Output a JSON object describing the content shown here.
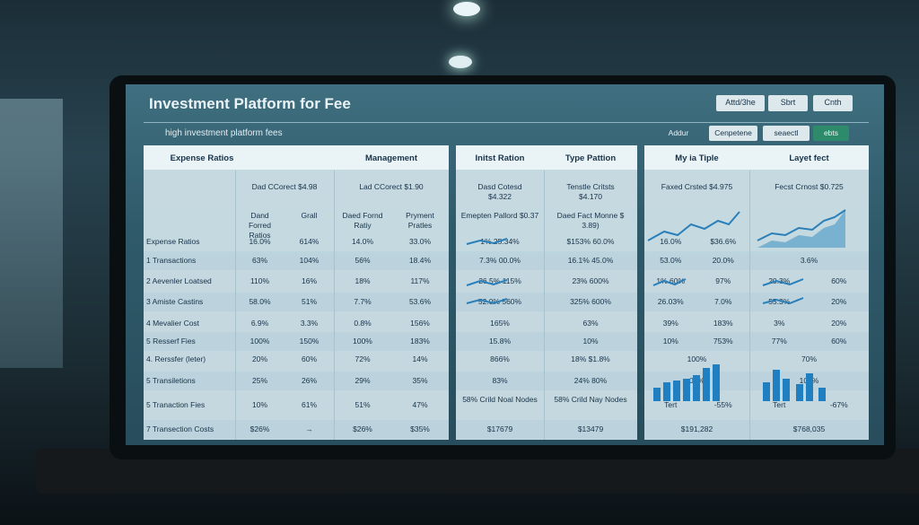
{
  "header": {
    "title": "Investment Platform for Fee",
    "buttons": [
      "Attd/3he",
      "Sbrt",
      "Cnth"
    ]
  },
  "toolbar": {
    "subtitle": "high investment platform fees",
    "controls": [
      "Addur",
      "Cenpetene",
      "seaectl",
      "ebts"
    ]
  },
  "panels": [
    {
      "headers": [
        "Expense Ratios",
        "Management"
      ],
      "summaries": [
        "Dad CCorect $4.98",
        "Lad CCorect $1.90"
      ],
      "columns": [
        [
          "Dand Forred Ratios",
          "Grall"
        ],
        [
          "Daed Fornd Ratiy",
          "Pryment Pratles"
        ]
      ],
      "labels": [
        "Expense Ratios",
        "1 Transactions",
        "2 Aevenler Loatsed",
        "3 Amiste Castins",
        "4 Mevalier Cost",
        "5 Resserf Fies",
        "4. Rerssfer (leter)",
        "5 Transiletions",
        "5 Tranaction Fies",
        "7 Transection Costs"
      ],
      "rows": [
        [
          [
            "16.0%",
            "614%"
          ],
          [
            "14.0%",
            "33.0%"
          ]
        ],
        [
          [
            "63%",
            "104%"
          ],
          [
            "56%",
            "18.4%"
          ]
        ],
        [
          [
            "110%",
            "16%"
          ],
          [
            "18%",
            "117%"
          ]
        ],
        [
          [
            "58.0%",
            "51%"
          ],
          [
            "7.7%",
            "53.6%"
          ]
        ],
        [
          [
            "6.9%",
            "3.3%"
          ],
          [
            "0.8%",
            "156%"
          ]
        ],
        [
          [
            "100%",
            "150%"
          ],
          [
            "100%",
            "183%"
          ]
        ],
        [
          [
            "20%",
            "60%"
          ],
          [
            "72%",
            "14%"
          ]
        ],
        [
          [
            "25%",
            "26%"
          ],
          [
            "29%",
            "35%"
          ]
        ],
        [
          [
            "10%",
            "61%"
          ],
          [
            "51%",
            "47%"
          ]
        ],
        [
          [
            "$26%",
            "→"
          ],
          [
            "$26%",
            "$35%"
          ]
        ]
      ]
    },
    {
      "headers": [
        "Initst Ration",
        "Type Pattion"
      ],
      "summaries": [
        "Dasd Cotesd $4.322",
        "Tenstle Critsts $4.170"
      ],
      "columns": [
        [
          "Emepten Pallord $0.37"
        ],
        [
          "Daed Fact Monne $ 3.89)"
        ]
      ],
      "rows": [
        [
          [
            "1% 25.34%"
          ],
          [
            "$153% 60.0%"
          ]
        ],
        [
          [
            "7.3% 00.0%"
          ],
          [
            "16.1% 45.0%"
          ]
        ],
        [
          [
            "26.5% 115%"
          ],
          [
            "23% 600%"
          ]
        ],
        [
          [
            "52.0% 560%"
          ],
          [
            "325% 600%"
          ]
        ],
        [
          [
            "165%"
          ],
          [
            "63%"
          ]
        ],
        [
          [
            "15.8%"
          ],
          [
            "10%"
          ]
        ],
        [
          [
            "866%"
          ],
          [
            "18% $1.8%"
          ]
        ],
        [
          [
            "83%"
          ],
          [
            "24% 80%"
          ]
        ],
        [
          [
            "58% Crild Noal Nodes"
          ],
          [
            "58% Crild Nay Nodes"
          ]
        ],
        [
          [
            "$17679"
          ],
          [
            "$13479"
          ]
        ]
      ]
    },
    {
      "headers": [
        "My ia Tiple",
        "Layet fect"
      ],
      "summaries": [
        "Faxed Crsted $4.975",
        "Fecst Crnost $0.725"
      ],
      "rows": [
        [
          [
            "16.0%",
            "$36.6%"
          ],
          []
        ],
        [
          [
            "53.0%",
            "20.0%"
          ],
          [
            "3.6%"
          ]
        ],
        [
          [
            "1% 60%",
            "97%"
          ],
          [
            "20.3%",
            "60%"
          ]
        ],
        [
          [
            "26.03%",
            "7.0%"
          ],
          [
            "55.3%",
            "20%"
          ]
        ],
        [
          [
            "39%",
            "183%"
          ],
          [
            "3%",
            "20%"
          ]
        ],
        [
          [
            "10%",
            "753%"
          ],
          [
            "77%",
            "60%"
          ]
        ],
        [
          [
            "100%"
          ],
          [
            "70%"
          ]
        ],
        [
          [
            "01%"
          ],
          [
            "102%"
          ]
        ],
        [
          [
            "Tert",
            "-55%"
          ],
          [
            "Tert",
            "-67%"
          ]
        ],
        [
          [
            "$191,282"
          ],
          [
            "$768,035"
          ]
        ]
      ]
    }
  ]
}
